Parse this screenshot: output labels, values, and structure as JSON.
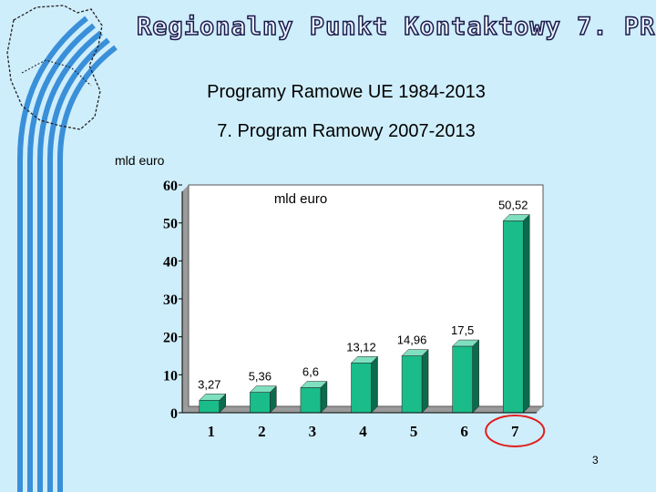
{
  "header": {
    "title": "Regionalny Punkt Kontaktowy 7. PR"
  },
  "subtitle_1": "Programy Ramowe UE 1984-2013",
  "subtitle_2": "7. Program Ramowy 2007-2013",
  "unit_label": "mld euro",
  "page_number": "3",
  "colors": {
    "background": "#cfeefb",
    "bar_face": "#1abc8a",
    "bar_side": "#0b6b4c",
    "bar_top": "#7fe0bf",
    "plot_bg": "#ffffff",
    "plot_wall": "#9a9a9a",
    "highlight": "#e0201e",
    "logo_stripes": "#3a8fd9"
  },
  "chart_data": {
    "type": "bar",
    "inner_title": "mld euro",
    "categories": [
      "1",
      "2",
      "3",
      "4",
      "5",
      "6",
      "7"
    ],
    "values": [
      3.27,
      5.36,
      6.6,
      13.12,
      14.96,
      17.5,
      50.52
    ],
    "data_labels": [
      "3,27",
      "5,36",
      "6,6",
      "13,12",
      "14,96",
      "17,5",
      "50,52"
    ],
    "ylim": [
      0,
      60
    ],
    "yticks": [
      0,
      10,
      20,
      30,
      40,
      50,
      60
    ],
    "highlighted_category": "7",
    "grid": false,
    "legend": "none"
  }
}
